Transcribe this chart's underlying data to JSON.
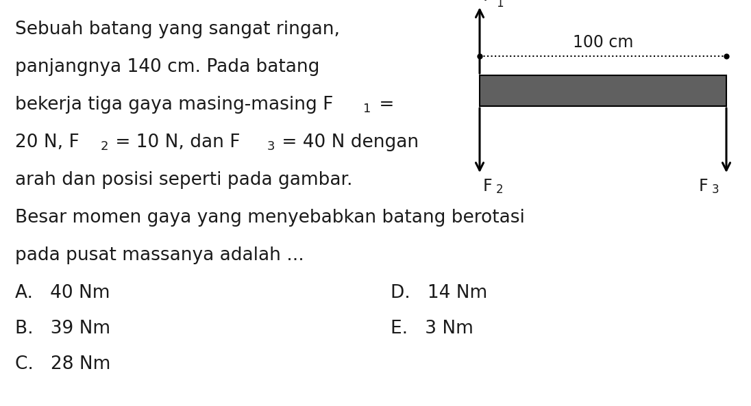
{
  "bg_color": "#ffffff",
  "text_color": "#1a1a1a",
  "font_size_main": 19,
  "font_size_sub": 13,
  "font_size_options": 19,
  "font_size_diagram": 17,
  "font_size_diagram_sub": 12,
  "bar_color": "#606060",
  "dotted_label": "100 cm",
  "optA": "A.   40 Nm",
  "optB": "B.   39 Nm",
  "optC": "C.   28 Nm",
  "optD": "D.   14 Nm",
  "optE": "E.   3 Nm"
}
